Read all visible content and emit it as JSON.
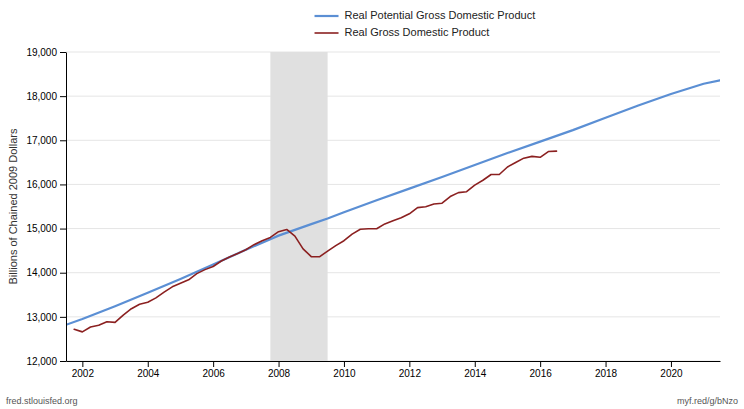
{
  "chart_data": {
    "type": "line",
    "ylabel": "Billions of Chained 2009 Dollars",
    "xlim": [
      2001.5,
      2021.5
    ],
    "ylim": [
      12000,
      19000
    ],
    "xticks": [
      2002,
      2004,
      2006,
      2008,
      2010,
      2012,
      2014,
      2016,
      2018,
      2020
    ],
    "yticks": [
      {
        "value": 12000,
        "label": "12,000"
      },
      {
        "value": 13000,
        "label": "13,000"
      },
      {
        "value": 14000,
        "label": "14,000"
      },
      {
        "value": 15000,
        "label": "15,000"
      },
      {
        "value": 16000,
        "label": "16,000"
      },
      {
        "value": 17000,
        "label": "17,000"
      },
      {
        "value": 18000,
        "label": "18,000"
      },
      {
        "value": 19000,
        "label": "19,000"
      }
    ],
    "grid": true,
    "legend": "top",
    "shading": {
      "x": [
        2007.75,
        2009.5
      ],
      "color": "#e0e0e0"
    },
    "annotations": [
      "fred.stlouisfed.org",
      "myf.red/g/bNzo"
    ],
    "series": [
      {
        "name": "Real Potential Gross Domestic Product",
        "color": "#5b8fd4",
        "x": [
          2001.5,
          2002.0,
          2003.0,
          2004.0,
          2005.0,
          2006.0,
          2007.0,
          2007.75,
          2008.0,
          2009.0,
          2009.5,
          2010.0,
          2011.0,
          2012.0,
          2013.0,
          2014.0,
          2015.0,
          2016.0,
          2017.0,
          2018.0,
          2019.0,
          2020.0,
          2021.0,
          2021.5
        ],
        "values": [
          12820,
          12950,
          13240,
          13545,
          13860,
          14185,
          14520,
          14760,
          14840,
          15100,
          15230,
          15370,
          15640,
          15905,
          16170,
          16440,
          16710,
          16970,
          17230,
          17510,
          17790,
          18050,
          18280,
          18360
        ]
      },
      {
        "name": "Real Gross Domestic Product",
        "color": "#8b2020",
        "x": [
          2001.75,
          2002.0,
          2002.25,
          2002.5,
          2002.75,
          2003.0,
          2003.25,
          2003.5,
          2003.75,
          2004.0,
          2004.25,
          2004.5,
          2004.75,
          2005.0,
          2005.25,
          2005.5,
          2005.75,
          2006.0,
          2006.25,
          2006.5,
          2006.75,
          2007.0,
          2007.25,
          2007.5,
          2007.75,
          2008.0,
          2008.25,
          2008.5,
          2008.75,
          2009.0,
          2009.25,
          2009.5,
          2009.75,
          2010.0,
          2010.25,
          2010.5,
          2010.75,
          2011.0,
          2011.25,
          2011.5,
          2011.75,
          2012.0,
          2012.25,
          2012.5,
          2012.75,
          2013.0,
          2013.25,
          2013.5,
          2013.75,
          2014.0,
          2014.25,
          2014.5,
          2014.75,
          2015.0,
          2015.25,
          2015.5,
          2015.75,
          2016.0,
          2016.25,
          2016.5
        ],
        "values": [
          12720,
          12660,
          12770,
          12810,
          12890,
          12875,
          13040,
          13185,
          13285,
          13330,
          13430,
          13560,
          13680,
          13760,
          13840,
          13980,
          14070,
          14140,
          14265,
          14355,
          14435,
          14520,
          14635,
          14725,
          14800,
          14930,
          14980,
          14830,
          14540,
          14365,
          14360,
          14490,
          14615,
          14725,
          14875,
          14985,
          14995,
          14995,
          15105,
          15175,
          15245,
          15335,
          15475,
          15495,
          15555,
          15575,
          15725,
          15815,
          15835,
          15985,
          16095,
          16225,
          16225,
          16395,
          16495,
          16595,
          16635,
          16615,
          16745,
          16755
        ]
      }
    ]
  }
}
